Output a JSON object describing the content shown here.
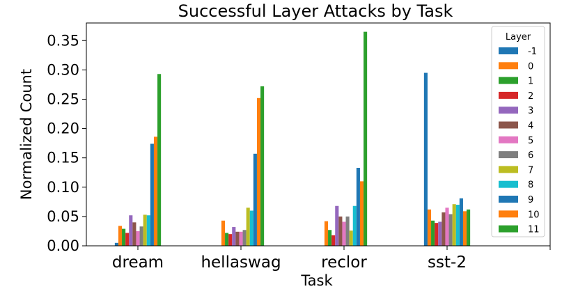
{
  "chart_data": {
    "type": "bar",
    "title": "Successful Layer Attacks by Task",
    "xlabel": "Task",
    "ylabel": "Normalized Count",
    "categories": [
      "dream",
      "hellaswag",
      "reclor",
      "sst-2"
    ],
    "ylim": [
      0,
      0.38
    ],
    "yticks": [
      "0.00",
      "0.05",
      "0.10",
      "0.15",
      "0.20",
      "0.25",
      "0.30",
      "0.35"
    ],
    "grid": false,
    "legend_title": "Layer",
    "legend_position": "right",
    "series": [
      {
        "name": "-1",
        "color": "#1f77b4",
        "values": [
          0.005,
          0.0,
          0.0,
          0.295
        ]
      },
      {
        "name": "0",
        "color": "#ff7f0e",
        "values": [
          0.034,
          0.043,
          0.042,
          0.062
        ]
      },
      {
        "name": "1",
        "color": "#2ca02c",
        "values": [
          0.029,
          0.022,
          0.027,
          0.043
        ]
      },
      {
        "name": "2",
        "color": "#d62728",
        "values": [
          0.022,
          0.02,
          0.018,
          0.039
        ]
      },
      {
        "name": "3",
        "color": "#9467bd",
        "values": [
          0.052,
          0.032,
          0.068,
          0.041
        ]
      },
      {
        "name": "4",
        "color": "#8c564b",
        "values": [
          0.04,
          0.024,
          0.05,
          0.057
        ]
      },
      {
        "name": "5",
        "color": "#e377c2",
        "values": [
          0.025,
          0.024,
          0.041,
          0.065
        ]
      },
      {
        "name": "6",
        "color": "#7f7f7f",
        "values": [
          0.033,
          0.027,
          0.05,
          0.054
        ]
      },
      {
        "name": "7",
        "color": "#bcbd22",
        "values": [
          0.053,
          0.065,
          0.026,
          0.071
        ]
      },
      {
        "name": "8",
        "color": "#17becf",
        "values": [
          0.052,
          0.06,
          0.068,
          0.07
        ]
      },
      {
        "name": "9",
        "color": "#1f77b4",
        "values": [
          0.174,
          0.157,
          0.133,
          0.081
        ]
      },
      {
        "name": "10",
        "color": "#ff7f0e",
        "values": [
          0.186,
          0.252,
          0.11,
          0.059
        ]
      },
      {
        "name": "11",
        "color": "#2ca02c",
        "values": [
          0.293,
          0.272,
          0.365,
          0.062
        ]
      }
    ]
  }
}
